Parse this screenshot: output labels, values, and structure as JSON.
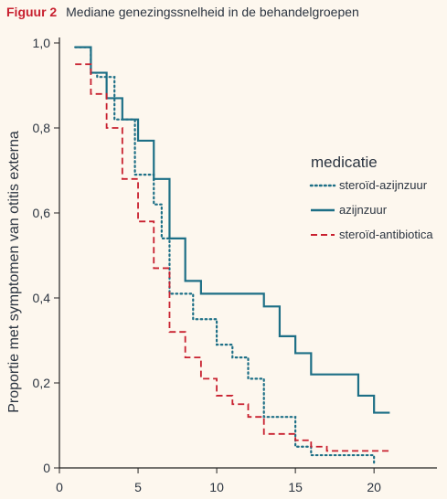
{
  "figure": {
    "label": "Figuur 2",
    "title": "Mediane genezingssnelheid in de behandelgroepen"
  },
  "chart_data": {
    "type": "line",
    "step": true,
    "title": "Mediane genezingssnelheid in de behandelgroepen",
    "xlabel": "",
    "ylabel": "Proportie met symptomen van otitis externa",
    "xlim": [
      0,
      24
    ],
    "ylim": [
      0,
      1
    ],
    "x_ticks": [
      0,
      5,
      10,
      15,
      20
    ],
    "x_tick_labels": [
      "0",
      "5",
      "10",
      "15",
      "20"
    ],
    "y_ticks": [
      0,
      0.2,
      0.4,
      0.6,
      0.8,
      1.0
    ],
    "y_tick_labels": [
      "0",
      "0,2",
      "0,4",
      "0,6",
      "0,8",
      "1,0"
    ],
    "grid": false,
    "legend": {
      "title": "medicatie",
      "placement": "right"
    },
    "series": [
      {
        "name": "steroïd-azijnzuur",
        "color": "#1d6f86",
        "dash": "dotted",
        "x": [
          1,
          2,
          2.4,
          3,
          3.5,
          4,
          4.8,
          5,
          6,
          6.5,
          7,
          8,
          8.5,
          9.2,
          10,
          11,
          12,
          13,
          14,
          15,
          16,
          20
        ],
        "y": [
          0.99,
          0.93,
          0.92,
          0.92,
          0.82,
          0.82,
          0.69,
          0.69,
          0.62,
          0.54,
          0.41,
          0.41,
          0.35,
          0.35,
          0.29,
          0.26,
          0.21,
          0.12,
          0.12,
          0.05,
          0.03,
          0.01
        ]
      },
      {
        "name": "azijnzuur",
        "color": "#1d6f86",
        "dash": "solid",
        "x": [
          1,
          2,
          3,
          4,
          5,
          6,
          7,
          8,
          9,
          13,
          14,
          15,
          16,
          19,
          20,
          21
        ],
        "y": [
          0.99,
          0.93,
          0.87,
          0.82,
          0.77,
          0.68,
          0.54,
          0.44,
          0.41,
          0.38,
          0.31,
          0.27,
          0.22,
          0.17,
          0.13,
          0.13
        ]
      },
      {
        "name": "steroïd-antibiotica",
        "color": "#c8202f",
        "dash": "dashed",
        "x": [
          1,
          2,
          3,
          4,
          5,
          6,
          7,
          8,
          9,
          10,
          11,
          12,
          13,
          14,
          15,
          16,
          17,
          21
        ],
        "y": [
          0.95,
          0.88,
          0.8,
          0.68,
          0.58,
          0.47,
          0.32,
          0.26,
          0.21,
          0.17,
          0.15,
          0.12,
          0.08,
          0.08,
          0.065,
          0.05,
          0.04,
          0.04
        ]
      }
    ]
  }
}
